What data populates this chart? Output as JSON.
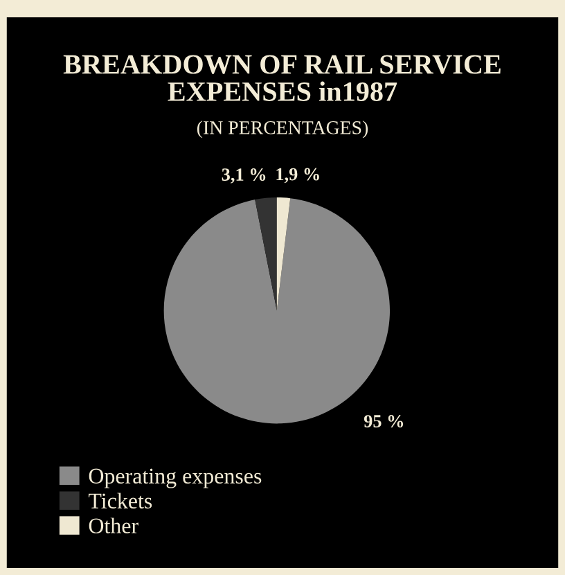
{
  "chart_data": {
    "type": "pie",
    "title": "BREAKDOWN OF RAIL SERVICE\nEXPENSES in1987",
    "subtitle": "(IN PERCENTAGES)",
    "categories": [
      "Operating expenses",
      "Tickets",
      "Other"
    ],
    "values": [
      95,
      3.1,
      1.9
    ],
    "colors": [
      "#8a8a8a",
      "#333333",
      "#efe8d2"
    ],
    "value_labels": [
      "95 %",
      "3,1 %",
      "1,9 %"
    ],
    "legend": "bottom left"
  }
}
